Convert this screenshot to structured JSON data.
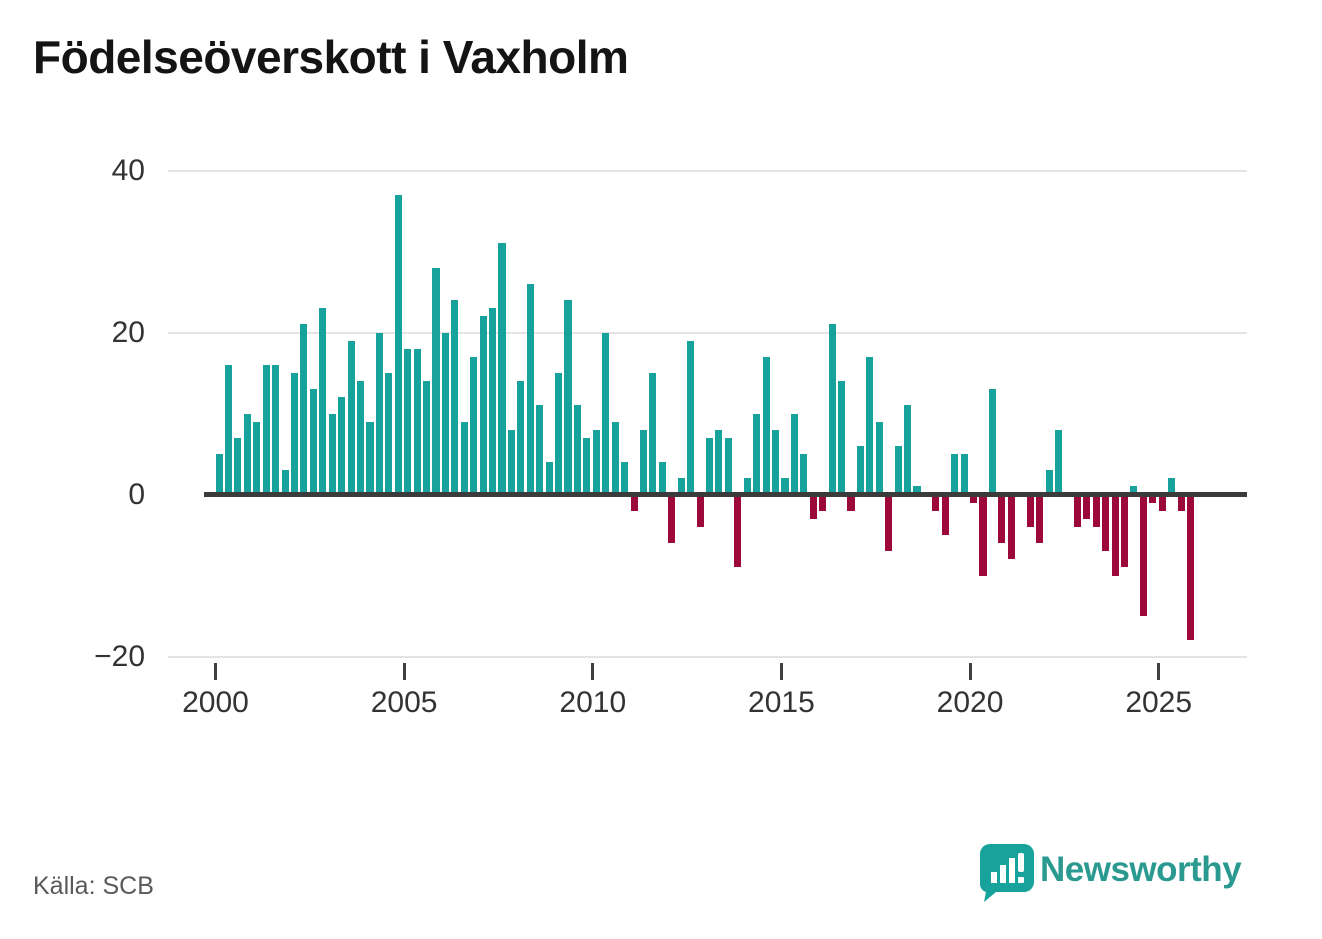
{
  "title": "Födelseöverskott i Vaxholm",
  "source": "Källa: SCB",
  "logo": {
    "text": "Newsworthy"
  },
  "colors": {
    "positive": "#17a29b",
    "negative": "#9c0839",
    "axis_line": "#3b3b3b",
    "gridline": "#e4e4e4",
    "tick_label": "#333333",
    "source_text": "#595959",
    "logo_teal": "#2a9a90",
    "title_text": "#141414"
  },
  "y_axis": {
    "ticks": [
      40,
      20,
      0,
      -20
    ],
    "labels": [
      "40",
      "20",
      "0",
      "−20"
    ]
  },
  "x_axis": {
    "ticks": [
      "2000",
      "2005",
      "2010",
      "2015",
      "2020",
      "2025"
    ]
  },
  "chart_data": {
    "type": "bar",
    "period": "quarterly",
    "start": "2000-Q1",
    "end": "2025-Q4",
    "title": "Födelseöverskott i Vaxholm",
    "xlabel": "",
    "ylabel": "",
    "ylim": [
      -20,
      40
    ],
    "grid": "horizontal",
    "legend": "none",
    "series": [
      {
        "name": "Födelseöverskott",
        "values": [
          5,
          16,
          7,
          10,
          9,
          16,
          16,
          3,
          15,
          21,
          13,
          23,
          10,
          12,
          19,
          14,
          9,
          20,
          15,
          37,
          18,
          18,
          14,
          28,
          20,
          24,
          9,
          17,
          22,
          23,
          31,
          8,
          14,
          26,
          11,
          4,
          15,
          24,
          11,
          7,
          8,
          20,
          9,
          4,
          -2,
          8,
          15,
          4,
          -6,
          2,
          19,
          -4,
          7,
          8,
          7,
          -9,
          2,
          10,
          17,
          8,
          2,
          10,
          5,
          -3,
          -2,
          21,
          14,
          -2,
          6,
          17,
          9,
          -7,
          6,
          11,
          1,
          0,
          -2,
          -5,
          5,
          5,
          -1,
          -10,
          13,
          -6,
          -8,
          0,
          -4,
          -6,
          3,
          8,
          0,
          -4,
          -3,
          -4,
          -7,
          -10,
          -9,
          1,
          -15,
          -1,
          -2,
          2,
          -2,
          -18
        ]
      }
    ]
  }
}
